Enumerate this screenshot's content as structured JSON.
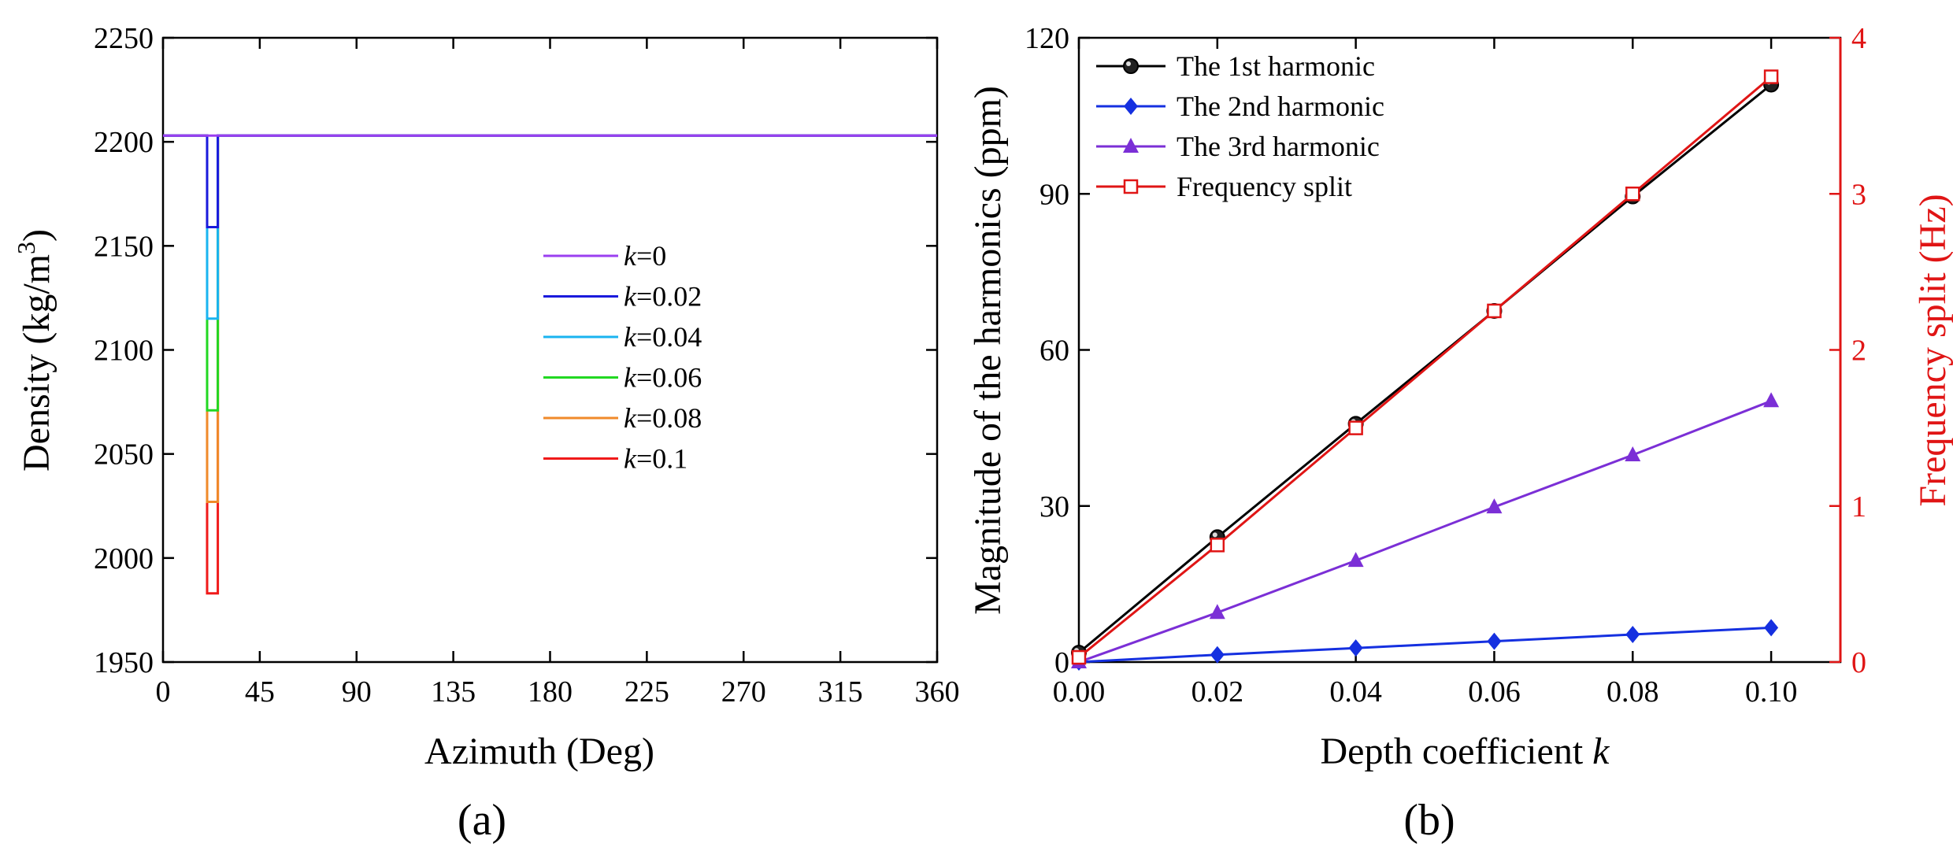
{
  "chart_data": [
    {
      "type": "line",
      "panel_label": "(a)",
      "xlabel": "Azimuth (Deg)",
      "ylabel_main": "Density (kg/m",
      "ylabel_sup": "3",
      "ylabel_close": ")",
      "xlim": [
        0,
        360
      ],
      "ylim": [
        1950,
        2250
      ],
      "xticks": [
        0,
        45,
        90,
        135,
        180,
        225,
        270,
        315,
        360
      ],
      "yticks": [
        1950,
        2000,
        2050,
        2100,
        2150,
        2200,
        2250
      ],
      "notch_azimuth": [
        20.5,
        25.5
      ],
      "baseline_density": 2203,
      "legend_position": "center",
      "series": [
        {
          "name_var": "k",
          "name_val": "=0",
          "color": "#9b3ff0",
          "dip_to": 2203
        },
        {
          "name_var": "k",
          "name_val": "=0.02",
          "color": "#1a1adc",
          "dip_to": 2159
        },
        {
          "name_var": "k",
          "name_val": "=0.04",
          "color": "#1ab4f0",
          "dip_to": 2115
        },
        {
          "name_var": "k",
          "name_val": "=0.06",
          "color": "#22d822",
          "dip_to": 2071
        },
        {
          "name_var": "k",
          "name_val": "=0.08",
          "color": "#f08a2a",
          "dip_to": 2027
        },
        {
          "name_var": "k",
          "name_val": "=0.1",
          "color": "#f01a1a",
          "dip_to": 1983
        }
      ]
    },
    {
      "type": "line",
      "panel_label": "(b)",
      "xlabel_main": "Depth coefficient ",
      "xlabel_var": "k",
      "ylabel_left": "Magnitude of the harmonics (ppm)",
      "ylabel_right": "Frequency split (Hz)",
      "xlim": [
        0,
        0.11
      ],
      "ylim_left": [
        0,
        120
      ],
      "ylim_right": [
        0,
        4
      ],
      "xticks": [
        "0.00",
        "0.02",
        "0.04",
        "0.06",
        "0.08",
        "0.10"
      ],
      "yticks_left": [
        0,
        30,
        60,
        90,
        120
      ],
      "yticks_right": [
        0,
        1,
        2,
        3,
        4
      ],
      "x": [
        0,
        0.02,
        0.04,
        0.06,
        0.08,
        0.1
      ],
      "legend_position": "top-left",
      "series": [
        {
          "name": "The 1st harmonic",
          "axis": "left",
          "color": "#000000",
          "marker": "circle",
          "values": [
            1.8,
            24,
            45.8,
            67.5,
            89.5,
            111
          ]
        },
        {
          "name": "The 2nd harmonic",
          "axis": "left",
          "color": "#1530e0",
          "marker": "diamond",
          "values": [
            0,
            1.4,
            2.7,
            4,
            5.3,
            6.6
          ]
        },
        {
          "name": "The 3rd harmonic",
          "axis": "left",
          "color": "#7b2fd6",
          "marker": "triangle",
          "values": [
            0,
            9.5,
            19.5,
            29.8,
            39.8,
            50.2
          ]
        },
        {
          "name": "Frequency split",
          "axis": "right",
          "color": "#e01515",
          "marker": "square-open",
          "values": [
            0.03,
            0.75,
            1.5,
            2.25,
            3.0,
            3.75
          ]
        }
      ]
    }
  ]
}
